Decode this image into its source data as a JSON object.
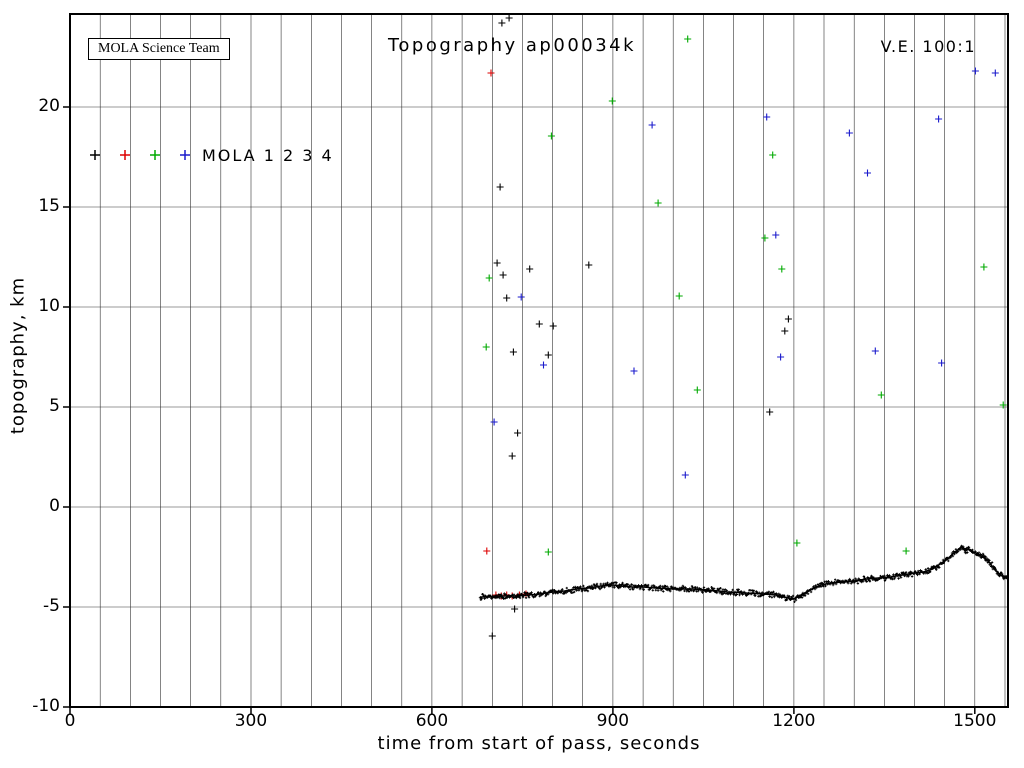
{
  "header": {
    "team_box": "MOLA Science Team",
    "title": "Topography ap00034k",
    "ve_label": "V.E. 100:1"
  },
  "legend": {
    "label": "MOLA 1 2 3 4"
  },
  "chart_data": {
    "type": "scatter",
    "title": "Topography ap00034k",
    "xlabel": "time from start of pass, seconds",
    "ylabel": "topography, km",
    "xlim": [
      0,
      1555
    ],
    "ylim": [
      -10,
      24.65
    ],
    "x_ticks": [
      0,
      300,
      600,
      900,
      1200,
      1500
    ],
    "y_ticks": [
      -10,
      -5,
      0,
      5,
      10,
      15,
      20
    ],
    "x_grid_step": 50,
    "y_grid_step": 5,
    "grid": true,
    "legend_position": "upper-left-inside",
    "series": [
      {
        "name": "MOLA 1",
        "color": "#000000",
        "points": [
          [
            716,
            24.2
          ],
          [
            728,
            24.45
          ],
          [
            713,
            16.0
          ],
          [
            708,
            12.2
          ],
          [
            718,
            11.6
          ],
          [
            724,
            10.45
          ],
          [
            735,
            7.75
          ],
          [
            742,
            3.7
          ],
          [
            733,
            2.55
          ],
          [
            700,
            -6.45
          ],
          [
            737,
            -5.1
          ],
          [
            762,
            11.9
          ],
          [
            778,
            9.15
          ],
          [
            793,
            7.6
          ],
          [
            801,
            9.05
          ],
          [
            860,
            12.1
          ],
          [
            1160,
            4.75
          ],
          [
            1185,
            8.8
          ],
          [
            1191,
            9.4
          ]
        ]
      },
      {
        "name": "MOLA 2",
        "color": "#dd0000",
        "points": [
          [
            698,
            21.7
          ],
          [
            691,
            -2.2
          ],
          [
            706,
            -4.4
          ],
          [
            715,
            -4.45
          ],
          [
            724,
            -4.4
          ],
          [
            733,
            -4.45
          ],
          [
            745,
            -4.4
          ],
          [
            756,
            -4.35
          ]
        ]
      },
      {
        "name": "MOLA 3",
        "color": "#00aa00",
        "points": [
          [
            695,
            11.45
          ],
          [
            690,
            8.0
          ],
          [
            793,
            -2.25
          ],
          [
            798,
            18.55
          ],
          [
            899,
            20.3
          ],
          [
            975,
            15.2
          ],
          [
            1010,
            10.55
          ],
          [
            1024,
            23.4
          ],
          [
            1040,
            5.85
          ],
          [
            1152,
            13.45
          ],
          [
            1165,
            17.6
          ],
          [
            1180,
            11.9
          ],
          [
            1205,
            -1.8
          ],
          [
            1345,
            5.6
          ],
          [
            1386,
            -2.2
          ],
          [
            1515,
            12.0
          ],
          [
            1547,
            5.1
          ]
        ]
      },
      {
        "name": "MOLA 4",
        "color": "#1a1acc",
        "points": [
          [
            703,
            4.25
          ],
          [
            748,
            10.5
          ],
          [
            785,
            7.1
          ],
          [
            935,
            6.8
          ],
          [
            965,
            19.1
          ],
          [
            1020,
            1.6
          ],
          [
            1155,
            19.5
          ],
          [
            1170,
            13.6
          ],
          [
            1178,
            7.5
          ],
          [
            1292,
            18.7
          ],
          [
            1322,
            16.7
          ],
          [
            1335,
            7.8
          ],
          [
            1440,
            19.4
          ],
          [
            1445,
            7.2
          ],
          [
            1501,
            21.8
          ],
          [
            1534,
            21.7
          ]
        ]
      }
    ],
    "ground_track": {
      "name": "surface profile",
      "color": "#000000",
      "control_points": [
        [
          680,
          -4.5
        ],
        [
          700,
          -4.5
        ],
        [
          720,
          -4.45
        ],
        [
          740,
          -4.45
        ],
        [
          760,
          -4.4
        ],
        [
          780,
          -4.35
        ],
        [
          800,
          -4.25
        ],
        [
          820,
          -4.2
        ],
        [
          840,
          -4.1
        ],
        [
          860,
          -4.05
        ],
        [
          880,
          -3.95
        ],
        [
          900,
          -3.9
        ],
        [
          915,
          -3.95
        ],
        [
          930,
          -4.0
        ],
        [
          950,
          -4.0
        ],
        [
          970,
          -4.05
        ],
        [
          1000,
          -4.1
        ],
        [
          1030,
          -4.1
        ],
        [
          1060,
          -4.15
        ],
        [
          1090,
          -4.25
        ],
        [
          1120,
          -4.3
        ],
        [
          1150,
          -4.35
        ],
        [
          1170,
          -4.4
        ],
        [
          1190,
          -4.55
        ],
        [
          1200,
          -4.6
        ],
        [
          1215,
          -4.35
        ],
        [
          1230,
          -4.1
        ],
        [
          1245,
          -3.9
        ],
        [
          1260,
          -3.8
        ],
        [
          1280,
          -3.75
        ],
        [
          1300,
          -3.7
        ],
        [
          1320,
          -3.6
        ],
        [
          1340,
          -3.55
        ],
        [
          1360,
          -3.5
        ],
        [
          1380,
          -3.4
        ],
        [
          1400,
          -3.3
        ],
        [
          1415,
          -3.25
        ],
        [
          1430,
          -3.1
        ],
        [
          1445,
          -2.8
        ],
        [
          1455,
          -2.6
        ],
        [
          1465,
          -2.3
        ],
        [
          1472,
          -2.15
        ],
        [
          1478,
          -2.0
        ],
        [
          1484,
          -2.2
        ],
        [
          1490,
          -2.1
        ],
        [
          1496,
          -2.25
        ],
        [
          1502,
          -2.3
        ],
        [
          1510,
          -2.45
        ],
        [
          1518,
          -2.6
        ],
        [
          1525,
          -2.8
        ],
        [
          1532,
          -3.1
        ],
        [
          1540,
          -3.35
        ],
        [
          1548,
          -3.5
        ],
        [
          1555,
          -3.6
        ]
      ]
    }
  }
}
